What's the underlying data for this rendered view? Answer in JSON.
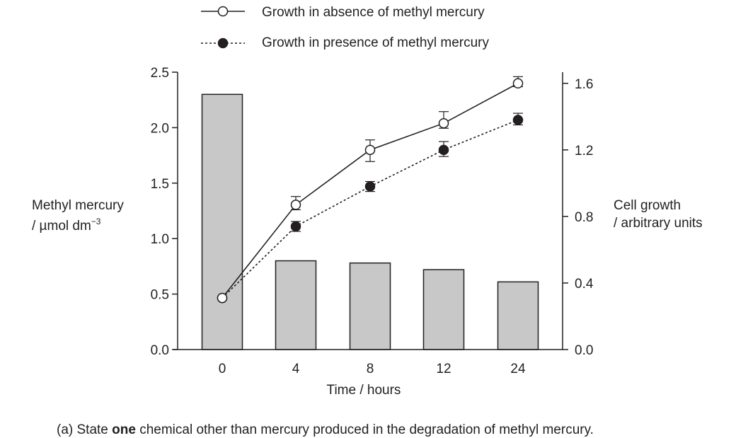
{
  "chart_data": {
    "type": "bar+line",
    "categories": [
      "0",
      "4",
      "8",
      "12",
      "24"
    ],
    "bars": {
      "name": "Methyl mercury",
      "axis": "left",
      "values": [
        2.3,
        0.8,
        0.78,
        0.72,
        0.61
      ],
      "color": "#c8c8c8"
    },
    "series": [
      {
        "name": "Growth in absence of methyl mercury",
        "axis": "right",
        "marker": "open-circle",
        "line_style": "solid",
        "values": [
          0.31,
          0.87,
          1.2,
          1.36,
          1.6
        ],
        "err_low": [
          0.31,
          0.84,
          1.13,
          1.33,
          1.58
        ],
        "err_high": [
          0.31,
          0.92,
          1.26,
          1.43,
          1.64
        ]
      },
      {
        "name": "Growth in presence of methyl mercury",
        "axis": "right",
        "marker": "filled-circle",
        "line_style": "dashed",
        "values": [
          0.31,
          0.74,
          0.98,
          1.2,
          1.38
        ],
        "err_low": [
          0.31,
          0.71,
          0.95,
          1.16,
          1.35
        ],
        "err_high": [
          0.31,
          0.77,
          1.01,
          1.25,
          1.42
        ]
      }
    ],
    "left_axis": {
      "label_line1": "Methyl mercury",
      "label_line2": "/ µmol dm",
      "label_sup": "−3",
      "ylim": [
        0,
        2.5
      ],
      "ticks": [
        0.0,
        0.5,
        1.0,
        1.5,
        2.0,
        2.5
      ],
      "tick_labels": [
        "0.0",
        "0.5",
        "1.0",
        "1.5",
        "2.0",
        "2.5"
      ]
    },
    "right_axis": {
      "label_line1": "Cell growth",
      "label_line2": "/ arbitrary units",
      "ylim": [
        0,
        1.667
      ],
      "ticks": [
        0.0,
        0.4,
        0.8,
        1.2,
        1.6
      ],
      "tick_labels": [
        "0.0",
        "0.4",
        "0.8",
        "1.2",
        "1.6"
      ]
    },
    "xlabel": "Time / hours",
    "legend_position": "top-center"
  },
  "question": {
    "prefix": "(a)     State ",
    "bold": "one",
    "suffix": " chemical other than mercury produced in the degradation of methyl mercury."
  }
}
